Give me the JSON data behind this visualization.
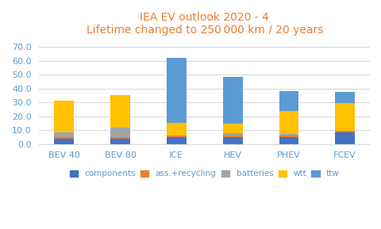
{
  "title_line1": "IEA EV outlook 2020 - 4",
  "title_line2": "Lifetime changed to 250 000 km / 20 years",
  "categories": [
    "BEV 40",
    "BEV 80",
    "ICE",
    "HEV",
    "PHEV",
    "FCEV"
  ],
  "segments": {
    "components": [
      4.0,
      4.0,
      5.0,
      5.0,
      5.0,
      8.5
    ],
    "ass.+recycling": [
      1.0,
      1.0,
      1.0,
      1.0,
      1.0,
      0.8
    ],
    "batteries": [
      3.5,
      7.0,
      0.0,
      1.5,
      1.0,
      0.0
    ],
    "wtt": [
      22.5,
      23.0,
      9.0,
      7.0,
      17.0,
      20.0
    ],
    "ttw": [
      0.0,
      0.0,
      47.0,
      34.0,
      14.0,
      8.0
    ]
  },
  "colors": {
    "components": "#4472C4",
    "ass.+recycling": "#ED7D31",
    "batteries": "#A5A5A5",
    "wtt": "#FFC000",
    "ttw": "#5B9BD5"
  },
  "bar_width": 0.35,
  "ylim": [
    0,
    75
  ],
  "yticks": [
    0.0,
    10.0,
    20.0,
    30.0,
    40.0,
    50.0,
    60.0,
    70.0
  ],
  "title_color": "#ED7D31",
  "background_color": "#FFFFFF",
  "grid_color": "#D9D9D9",
  "title_fontsize": 10,
  "axis_fontsize": 8,
  "legend_fontsize": 7.5,
  "tick_color": "#5B9BD5"
}
